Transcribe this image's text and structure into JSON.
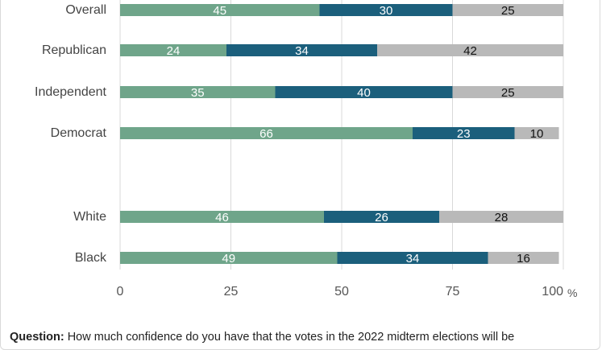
{
  "chart_data": {
    "type": "bar",
    "orientation": "horizontal",
    "stacked": true,
    "categories": [
      "Overall",
      "Republican",
      "Independent",
      "Democrat",
      "White",
      "Black"
    ],
    "series": [
      {
        "values": [
          45,
          24,
          35,
          66,
          46,
          49
        ],
        "color": "#6fa58a",
        "label_color": "#ffffff"
      },
      {
        "values": [
          30,
          34,
          40,
          23,
          26,
          34
        ],
        "color": "#1b5f7c",
        "label_color": "#ffffff"
      },
      {
        "values": [
          25,
          42,
          25,
          10,
          28,
          16
        ],
        "color": "#b9b9b9",
        "label_color": "#111111"
      }
    ],
    "xlim": [
      0,
      100
    ],
    "xticks": [
      0,
      25,
      50,
      75,
      100
    ],
    "x_unit": "%",
    "grid": true
  },
  "question": {
    "label": "Question:",
    "text": "How much confidence do you have that the votes in the 2022 midterm elections will be"
  }
}
